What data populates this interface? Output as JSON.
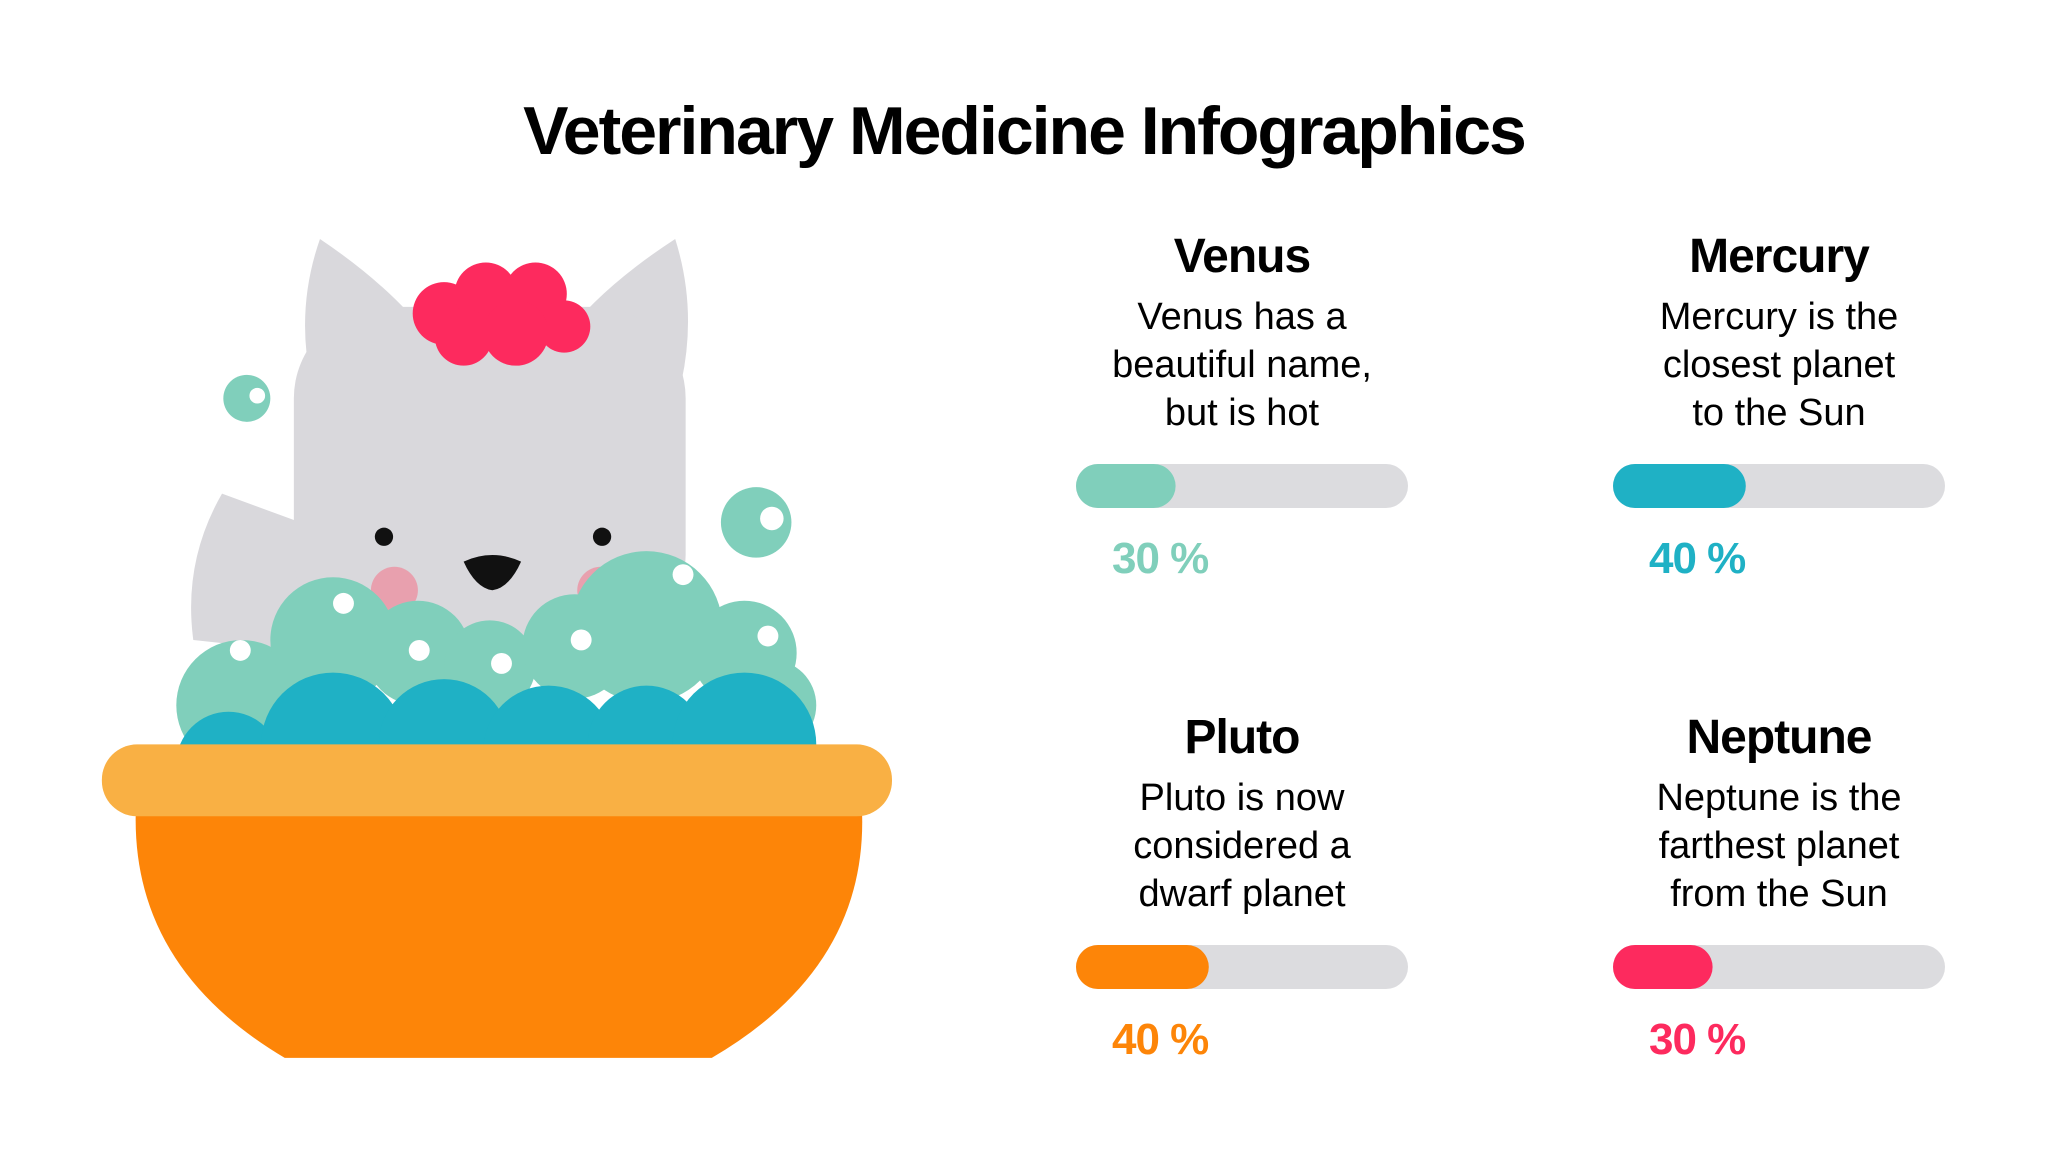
{
  "title": "Veterinary Medicine Infographics",
  "items": [
    {
      "name": "Venus",
      "text": [
        "Venus has a",
        "beautiful name,",
        "but is hot"
      ],
      "value": 30,
      "value_label": "30 %",
      "color": "#80cfbb"
    },
    {
      "name": "Mercury",
      "text": [
        "Mercury is the",
        "closest planet",
        "to the Sun"
      ],
      "value": 40,
      "value_label": "40 %",
      "color": "#1fb1c5"
    },
    {
      "name": "Pluto",
      "text": [
        "Pluto is now",
        "considered a",
        "dwarf planet"
      ],
      "value": 40,
      "value_label": "40 %",
      "color": "#fd8508"
    },
    {
      "name": "Neptune",
      "text": [
        "Neptune is the",
        "farthest planet",
        "from the Sun"
      ],
      "value": 30,
      "value_label": "30 %",
      "color": "#fd2a5e"
    }
  ]
}
